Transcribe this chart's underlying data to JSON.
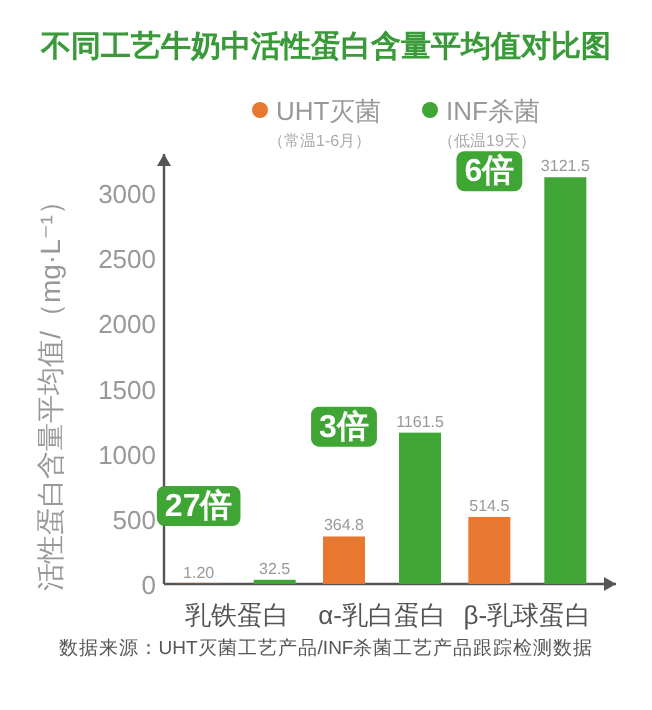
{
  "chart_data": {
    "type": "bar",
    "title": "不同工艺牛奶中活性蛋白含量平均值对比图",
    "ylabel": "活性蛋白含量平均值/（mg·L⁻¹）",
    "categories": [
      "乳铁蛋白",
      "α-乳白蛋白",
      "β-乳球蛋白"
    ],
    "series": [
      {
        "name": "UHT灭菌（常温1-6月）",
        "color": "#e8782f",
        "values": [
          1.2,
          364.8,
          514.5
        ],
        "value_labels": [
          "1.20",
          "364.8",
          "514.5"
        ]
      },
      {
        "name": "INF杀菌（低温19天）",
        "color": "#3fa535",
        "values": [
          32.5,
          1161.5,
          3121.5
        ],
        "value_labels": [
          "32.5",
          "1161.5",
          "3121.5"
        ]
      }
    ],
    "ylim": [
      0,
      3300
    ],
    "yticks": [
      0,
      500,
      1000,
      1500,
      2000,
      2500,
      3000
    ],
    "legend": "top",
    "annotations": [
      "27倍",
      "3倍",
      "6倍",
      "数据来源：UHT灭菌工艺产品/INF杀菌工艺产品跟踪检测数据"
    ]
  }
}
